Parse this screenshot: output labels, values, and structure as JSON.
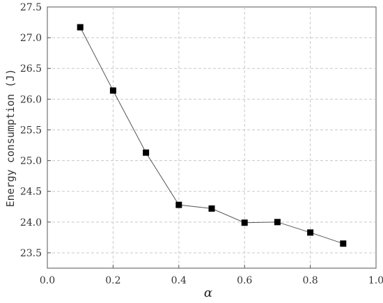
{
  "chart_data": {
    "type": "line",
    "title": "",
    "xlabel": "α",
    "ylabel": "Energy consumption (J)",
    "xlim": [
      0.0,
      1.0
    ],
    "ylim": [
      23.25,
      27.5
    ],
    "x_ticks": [
      "0.0",
      "0.2",
      "0.4",
      "0.6",
      "0.8",
      "1.0"
    ],
    "y_ticks": [
      "23.5",
      "24.0",
      "24.5",
      "25.0",
      "25.5",
      "26.0",
      "26.5",
      "27.0",
      "27.5"
    ],
    "grid": true,
    "legend": "none",
    "marker": "square",
    "line_color": "#555555",
    "marker_color": "#000000",
    "x": [
      0.1,
      0.2,
      0.3,
      0.4,
      0.5,
      0.6,
      0.7,
      0.8,
      0.9
    ],
    "series": [
      {
        "values": [
          27.17,
          26.14,
          25.13,
          24.28,
          24.22,
          23.99,
          24.0,
          23.83,
          23.65
        ]
      }
    ]
  }
}
